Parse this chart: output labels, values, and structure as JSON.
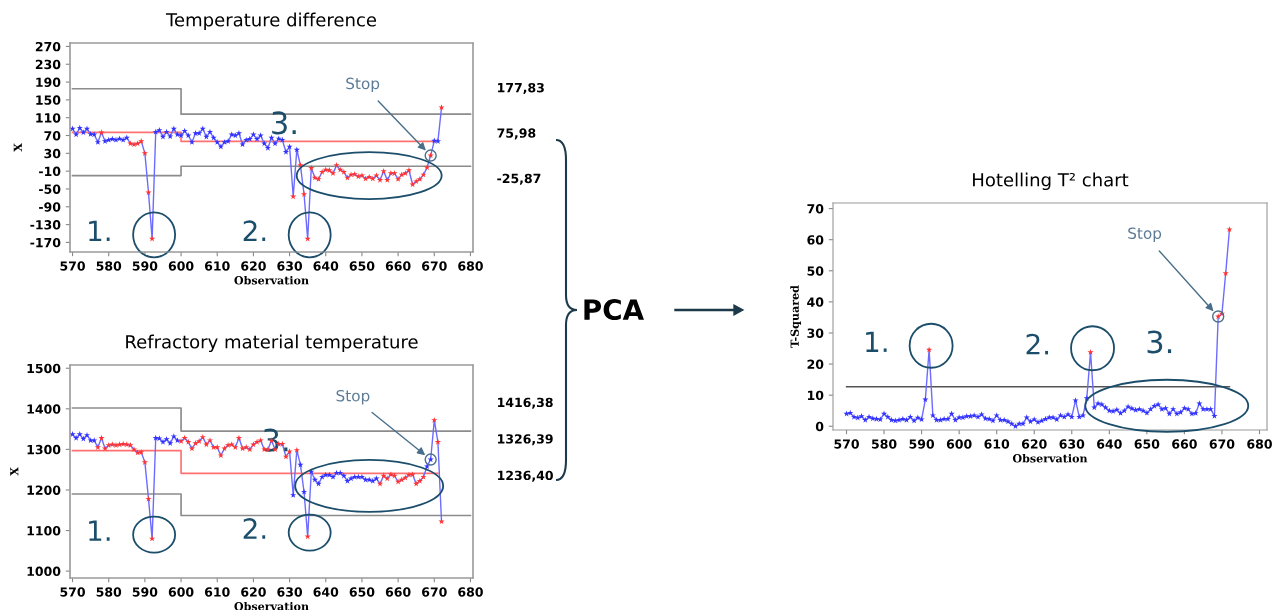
{
  "chart_data": [
    {
      "type": "line",
      "title": "Temperature difference",
      "xlabel": "Observation",
      "ylabel": "X",
      "x": [
        570,
        571,
        572,
        573,
        574,
        575,
        576,
        577,
        578,
        579,
        580,
        581,
        582,
        583,
        584,
        585,
        586,
        587,
        588,
        589,
        590,
        591,
        592,
        593,
        594,
        595,
        596,
        597,
        598,
        599,
        600,
        601,
        602,
        603,
        604,
        605,
        606,
        607,
        608,
        609,
        610,
        611,
        612,
        613,
        614,
        615,
        616,
        617,
        618,
        619,
        620,
        621,
        622,
        623,
        624,
        625,
        626,
        627,
        628,
        629,
        630,
        631,
        632,
        633,
        634,
        635,
        636,
        637,
        638,
        639,
        640,
        641,
        642,
        643,
        644,
        645,
        646,
        647,
        648,
        649,
        650,
        651,
        652,
        653,
        654,
        655,
        656,
        657,
        658,
        659,
        660,
        661,
        662,
        663,
        664,
        665,
        666,
        667,
        668,
        669,
        670,
        671,
        672
      ],
      "xlim": [
        569.3,
        680.7
      ],
      "xticks": [
        570,
        580,
        590,
        600,
        610,
        620,
        630,
        640,
        650,
        660,
        670,
        680
      ],
      "ylim": [
        -191.5,
        277.7
      ],
      "yticks": [
        -170,
        -130,
        -90,
        -50,
        -10,
        30,
        70,
        110,
        150,
        190,
        230,
        270
      ],
      "y2lim": [
        -191.5,
        277.7
      ],
      "y2ticks": [
        {
          "value": 177.83,
          "label": "177,83"
        },
        {
          "value": 75.98,
          "label": "75,98"
        },
        {
          "value": -25.87,
          "label": "-25,87"
        }
      ],
      "series": [
        {
          "type": "step",
          "x": [
            570,
            600,
            680
          ],
          "color": "#8c8c8c",
          "values": [
            175,
            118,
            118
          ]
        },
        {
          "type": "step",
          "x": [
            570,
            600,
            670
          ],
          "color": "#ff7070",
          "values": [
            77,
            57,
            57
          ]
        },
        {
          "type": "step",
          "x": [
            570,
            600,
            680
          ],
          "color": "#8c8c8c",
          "values": [
            -20,
            1,
            1
          ]
        },
        {
          "color": "#6b6bff",
          "marker": "star",
          "values": [
            85,
            72,
            87,
            77,
            85,
            73,
            72,
            55,
            77,
            57,
            60,
            62,
            60,
            63,
            60,
            65,
            52,
            50,
            52,
            57,
            30,
            -58,
            -162,
            78,
            82,
            67,
            78,
            68,
            85,
            72,
            70,
            80,
            70,
            55,
            75,
            75,
            85,
            67,
            78,
            65,
            55,
            45,
            55,
            57,
            72,
            70,
            75,
            50,
            60,
            62,
            72,
            62,
            70,
            52,
            42,
            65,
            52,
            63,
            60,
            33,
            45,
            -67,
            38,
            3,
            -62,
            -162,
            -3,
            -25,
            -28,
            -12,
            -7,
            -8,
            -15,
            3,
            -7,
            -12,
            -25,
            -18,
            -17,
            -22,
            -20,
            -27,
            -23,
            -27,
            -20,
            -30,
            -10,
            -30,
            -15,
            -15,
            -28,
            -18,
            -15,
            -8,
            -40,
            -33,
            -28,
            -18,
            -2,
            25,
            58,
            57,
            133
          ],
          "colors": [
            "#3333ff",
            "#3333ff",
            "#3333ff",
            "#3333ff",
            "#3333ff",
            "#3333ff",
            "#3333ff",
            "#3333ff",
            "#ff3333",
            "#3333ff",
            "#3333ff",
            "#3333ff",
            "#3333ff",
            "#3333ff",
            "#3333ff",
            "#3333ff",
            "#ff3333",
            "#ff3333",
            "#ff3333",
            "#ff3333",
            "#ff3333",
            "#ff3333",
            "#ff3333",
            "#3333ff",
            "#3333ff",
            "#3333ff",
            "#3333ff",
            "#3333ff",
            "#3333ff",
            "#3333ff",
            "#3333ff",
            "#3333ff",
            "#3333ff",
            "#3333ff",
            "#3333ff",
            "#3333ff",
            "#3333ff",
            "#3333ff",
            "#3333ff",
            "#3333ff",
            "#3333ff",
            "#3333ff",
            "#3333ff",
            "#3333ff",
            "#3333ff",
            "#3333ff",
            "#3333ff",
            "#3333ff",
            "#3333ff",
            "#3333ff",
            "#3333ff",
            "#3333ff",
            "#3333ff",
            "#3333ff",
            "#3333ff",
            "#3333ff",
            "#3333ff",
            "#3333ff",
            "#3333ff",
            "#3333ff",
            "#3333ff",
            "#ff3333",
            "#3333ff",
            "#ff3333",
            "#ff3333",
            "#ff3333",
            "#ff3333",
            "#ff3333",
            "#ff3333",
            "#ff3333",
            "#ff3333",
            "#ff3333",
            "#ff3333",
            "#ff3333",
            "#ff3333",
            "#ff3333",
            "#ff3333",
            "#ff3333",
            "#ff3333",
            "#ff3333",
            "#ff3333",
            "#ff3333",
            "#ff3333",
            "#ff3333",
            "#ff3333",
            "#ff3333",
            "#ff3333",
            "#ff3333",
            "#ff3333",
            "#ff3333",
            "#ff3333",
            "#ff3333",
            "#ff3333",
            "#ff3333",
            "#ff3333",
            "#ff3333",
            "#ff3333",
            "#ff3333",
            "#ff3333",
            "#ff3333",
            "#3333ff",
            "#3333ff",
            "#ff3333"
          ]
        }
      ],
      "annotations": [
        {
          "text": "1.",
          "x": 592,
          "y": -162
        },
        {
          "text": "2.",
          "x": 635,
          "y": -162
        },
        {
          "text": "3.",
          "x": 652,
          "y": -20
        },
        {
          "text": "Stop",
          "x": 669,
          "y": 25
        }
      ]
    },
    {
      "type": "line",
      "title": "Refractory material temperature",
      "xlabel": "Observation",
      "ylabel": "X",
      "x": [
        570,
        571,
        572,
        573,
        574,
        575,
        576,
        577,
        578,
        579,
        580,
        581,
        582,
        583,
        584,
        585,
        586,
        587,
        588,
        589,
        590,
        591,
        592,
        593,
        594,
        595,
        596,
        597,
        598,
        599,
        600,
        601,
        602,
        603,
        604,
        605,
        606,
        607,
        608,
        609,
        610,
        611,
        612,
        613,
        614,
        615,
        616,
        617,
        618,
        619,
        620,
        621,
        622,
        623,
        624,
        625,
        626,
        627,
        628,
        629,
        630,
        631,
        632,
        633,
        634,
        635,
        636,
        637,
        638,
        639,
        640,
        641,
        642,
        643,
        644,
        645,
        646,
        647,
        648,
        649,
        650,
        651,
        652,
        653,
        654,
        655,
        656,
        657,
        658,
        659,
        660,
        661,
        662,
        663,
        664,
        665,
        666,
        667,
        668,
        669,
        670,
        671,
        672
      ],
      "xlim": [
        569.3,
        680.7
      ],
      "xticks": [
        570,
        580,
        590,
        600,
        610,
        620,
        630,
        640,
        650,
        660,
        670,
        680
      ],
      "ylim": [
        983,
        1508
      ],
      "yticks": [
        1000,
        1100,
        1200,
        1300,
        1400,
        1500
      ],
      "y2lim": [
        983,
        1508
      ],
      "y2ticks": [
        {
          "value": 1416.38,
          "label": "1416,38"
        },
        {
          "value": 1326.39,
          "label": "1326,39"
        },
        {
          "value": 1236.4,
          "label": "1236,40"
        }
      ],
      "series": [
        {
          "type": "step",
          "x": [
            570,
            600,
            680
          ],
          "color": "#8c8c8c",
          "values": [
            1402,
            1345,
            1345
          ]
        },
        {
          "type": "step",
          "x": [
            570,
            600,
            671
          ],
          "color": "#ff7070",
          "values": [
            1297,
            1241,
            1241
          ]
        },
        {
          "type": "step",
          "x": [
            570,
            600,
            680
          ],
          "color": "#8c8c8c",
          "values": [
            1190,
            1137,
            1137
          ]
        },
        {
          "color": "#6b6bff",
          "marker": "star",
          "values": [
            1337,
            1328,
            1337,
            1326,
            1335,
            1322,
            1322,
            1305,
            1328,
            1302,
            1310,
            1312,
            1310,
            1312,
            1313,
            1312,
            1310,
            1300,
            1292,
            1293,
            1268,
            1178,
            1080,
            1328,
            1327,
            1318,
            1325,
            1315,
            1332,
            1322,
            1320,
            1328,
            1318,
            1302,
            1315,
            1320,
            1330,
            1312,
            1322,
            1305,
            1305,
            1285,
            1302,
            1310,
            1312,
            1305,
            1328,
            1302,
            1305,
            1300,
            1312,
            1318,
            1322,
            1300,
            1300,
            1322,
            1300,
            1313,
            1313,
            1282,
            1295,
            1187,
            1298,
            1262,
            1195,
            1085,
            1245,
            1225,
            1215,
            1232,
            1237,
            1237,
            1232,
            1242,
            1242,
            1235,
            1222,
            1228,
            1232,
            1232,
            1232,
            1225,
            1225,
            1222,
            1228,
            1215,
            1235,
            1228,
            1238,
            1235,
            1220,
            1225,
            1230,
            1237,
            1238,
            1215,
            1222,
            1232,
            1258,
            1275,
            1372,
            1318,
            1122
          ],
          "colors": [
            "#3333ff",
            "#3333ff",
            "#3333ff",
            "#3333ff",
            "#3333ff",
            "#3333ff",
            "#3333ff",
            "#ff3333",
            "#ff3333",
            "#ff3333",
            "#ff3333",
            "#ff3333",
            "#ff3333",
            "#ff3333",
            "#ff3333",
            "#ff3333",
            "#ff3333",
            "#ff3333",
            "#ff3333",
            "#ff3333",
            "#ff3333",
            "#ff3333",
            "#ff3333",
            "#3333ff",
            "#3333ff",
            "#3333ff",
            "#3333ff",
            "#3333ff",
            "#3333ff",
            "#3333ff",
            "#ff3333",
            "#ff3333",
            "#ff3333",
            "#ff3333",
            "#ff3333",
            "#ff3333",
            "#ff3333",
            "#ff3333",
            "#ff3333",
            "#ff3333",
            "#ff3333",
            "#ff3333",
            "#ff3333",
            "#ff3333",
            "#ff3333",
            "#ff3333",
            "#ff3333",
            "#ff3333",
            "#ff3333",
            "#ff3333",
            "#ff3333",
            "#ff3333",
            "#ff3333",
            "#ff3333",
            "#ff3333",
            "#ff3333",
            "#ff3333",
            "#ff3333",
            "#ff3333",
            "#ff3333",
            "#ff3333",
            "#3333ff",
            "#ff3333",
            "#3333ff",
            "#3333ff",
            "#ff3333",
            "#3333ff",
            "#3333ff",
            "#3333ff",
            "#3333ff",
            "#3333ff",
            "#3333ff",
            "#3333ff",
            "#3333ff",
            "#3333ff",
            "#3333ff",
            "#3333ff",
            "#3333ff",
            "#3333ff",
            "#3333ff",
            "#3333ff",
            "#3333ff",
            "#3333ff",
            "#3333ff",
            "#3333ff",
            "#ff3333",
            "#ff3333",
            "#ff3333",
            "#ff3333",
            "#ff3333",
            "#ff3333",
            "#ff3333",
            "#ff3333",
            "#ff3333",
            "#ff3333",
            "#ff3333",
            "#ff3333",
            "#ff3333",
            "#3333ff",
            "#3333ff",
            "#ff3333",
            "#ff3333",
            "#ff3333"
          ]
        }
      ],
      "annotations": [
        {
          "text": "1.",
          "x": 592,
          "y": 1080
        },
        {
          "text": "2.",
          "x": 635,
          "y": 1085
        },
        {
          "text": "3.",
          "x": 652,
          "y": 1210
        },
        {
          "text": "Stop",
          "x": 669,
          "y": 1275
        }
      ]
    },
    {
      "type": "line",
      "title": "Hotelling T² chart",
      "xlabel": "Observation",
      "ylabel": "T-Squared",
      "x": [
        570,
        571,
        572,
        573,
        574,
        575,
        576,
        577,
        578,
        579,
        580,
        581,
        582,
        583,
        584,
        585,
        586,
        587,
        588,
        589,
        590,
        591,
        592,
        593,
        594,
        595,
        596,
        597,
        598,
        599,
        600,
        601,
        602,
        603,
        604,
        605,
        606,
        607,
        608,
        609,
        610,
        611,
        612,
        613,
        614,
        615,
        616,
        617,
        618,
        619,
        620,
        621,
        622,
        623,
        624,
        625,
        626,
        627,
        628,
        629,
        630,
        631,
        632,
        633,
        634,
        635,
        636,
        637,
        638,
        639,
        640,
        641,
        642,
        643,
        644,
        645,
        646,
        647,
        648,
        649,
        650,
        651,
        652,
        653,
        654,
        655,
        656,
        657,
        658,
        659,
        660,
        661,
        662,
        663,
        664,
        665,
        666,
        667,
        668,
        669,
        670,
        671,
        672
      ],
      "xlim": [
        566.4,
        682
      ],
      "xticks": [
        570,
        580,
        590,
        600,
        610,
        620,
        630,
        640,
        650,
        660,
        670,
        680
      ],
      "ylim": [
        -1.2,
        71.8
      ],
      "yticks": [
        0,
        10,
        20,
        30,
        40,
        50,
        60,
        70
      ],
      "series": [
        {
          "type": "line",
          "x": [
            570,
            672
          ],
          "color": "#555555",
          "values": [
            12.7,
            12.7
          ]
        },
        {
          "color": "#6b6bff",
          "marker": "star",
          "values": [
            4,
            4.3,
            3,
            2.7,
            3.2,
            2,
            3,
            2.5,
            2.3,
            2.2,
            4,
            3,
            2,
            1.8,
            2,
            2.3,
            2,
            3,
            1.8,
            2.7,
            2.2,
            8.6,
            24.6,
            3.5,
            2,
            2,
            2.3,
            2.3,
            4,
            2,
            2.8,
            2.8,
            3.2,
            3.2,
            3.5,
            3,
            3.8,
            2.5,
            2.3,
            1.8,
            3.5,
            2,
            2,
            1.5,
            0.8,
            0,
            0.8,
            0.8,
            2.8,
            1.5,
            2.2,
            1.3,
            1.8,
            2.3,
            2.8,
            2.8,
            2.2,
            3.5,
            3,
            3.8,
            3,
            8.3,
            3,
            3.5,
            9,
            23.8,
            6,
            7.3,
            7,
            6,
            5,
            4.8,
            5.3,
            4.2,
            5,
            6.3,
            5.7,
            5.2,
            5.5,
            5,
            4.3,
            5.5,
            6.5,
            7,
            5.5,
            5.8,
            4,
            5.5,
            4,
            4.5,
            5.8,
            5.5,
            4,
            4.2,
            7.3,
            5.5,
            5.5,
            5.5,
            3.3,
            35.3,
            36.2,
            49.2,
            63.3
          ],
          "colors": [
            "#3333ff",
            "#3333ff",
            "#3333ff",
            "#3333ff",
            "#3333ff",
            "#3333ff",
            "#3333ff",
            "#3333ff",
            "#3333ff",
            "#3333ff",
            "#3333ff",
            "#3333ff",
            "#3333ff",
            "#3333ff",
            "#3333ff",
            "#3333ff",
            "#3333ff",
            "#3333ff",
            "#3333ff",
            "#3333ff",
            "#3333ff",
            "#3333ff",
            "#ff3333",
            "#3333ff",
            "#3333ff",
            "#3333ff",
            "#3333ff",
            "#3333ff",
            "#3333ff",
            "#3333ff",
            "#3333ff",
            "#3333ff",
            "#3333ff",
            "#3333ff",
            "#3333ff",
            "#3333ff",
            "#3333ff",
            "#3333ff",
            "#3333ff",
            "#3333ff",
            "#3333ff",
            "#3333ff",
            "#3333ff",
            "#3333ff",
            "#3333ff",
            "#3333ff",
            "#3333ff",
            "#3333ff",
            "#3333ff",
            "#3333ff",
            "#3333ff",
            "#3333ff",
            "#3333ff",
            "#3333ff",
            "#3333ff",
            "#3333ff",
            "#3333ff",
            "#3333ff",
            "#3333ff",
            "#3333ff",
            "#3333ff",
            "#3333ff",
            "#3333ff",
            "#3333ff",
            "#3333ff",
            "#ff3333",
            "#3333ff",
            "#3333ff",
            "#3333ff",
            "#3333ff",
            "#3333ff",
            "#3333ff",
            "#3333ff",
            "#3333ff",
            "#3333ff",
            "#3333ff",
            "#3333ff",
            "#3333ff",
            "#3333ff",
            "#3333ff",
            "#3333ff",
            "#3333ff",
            "#3333ff",
            "#3333ff",
            "#3333ff",
            "#3333ff",
            "#3333ff",
            "#3333ff",
            "#3333ff",
            "#3333ff",
            "#3333ff",
            "#3333ff",
            "#3333ff",
            "#3333ff",
            "#3333ff",
            "#3333ff",
            "#3333ff",
            "#3333ff",
            "#3333ff",
            "#ff3333",
            "#ff3333",
            "#ff3333",
            "#ff3333"
          ]
        }
      ],
      "annotations": [
        {
          "text": "1.",
          "x": 592,
          "y": 24.6
        },
        {
          "text": "2.",
          "x": 635,
          "y": 23.8
        },
        {
          "text": "3.",
          "x": 655.3,
          "y": 6.6
        },
        {
          "text": "Stop",
          "x": 669,
          "y": 35.3
        },
        "PCA"
      ]
    }
  ]
}
